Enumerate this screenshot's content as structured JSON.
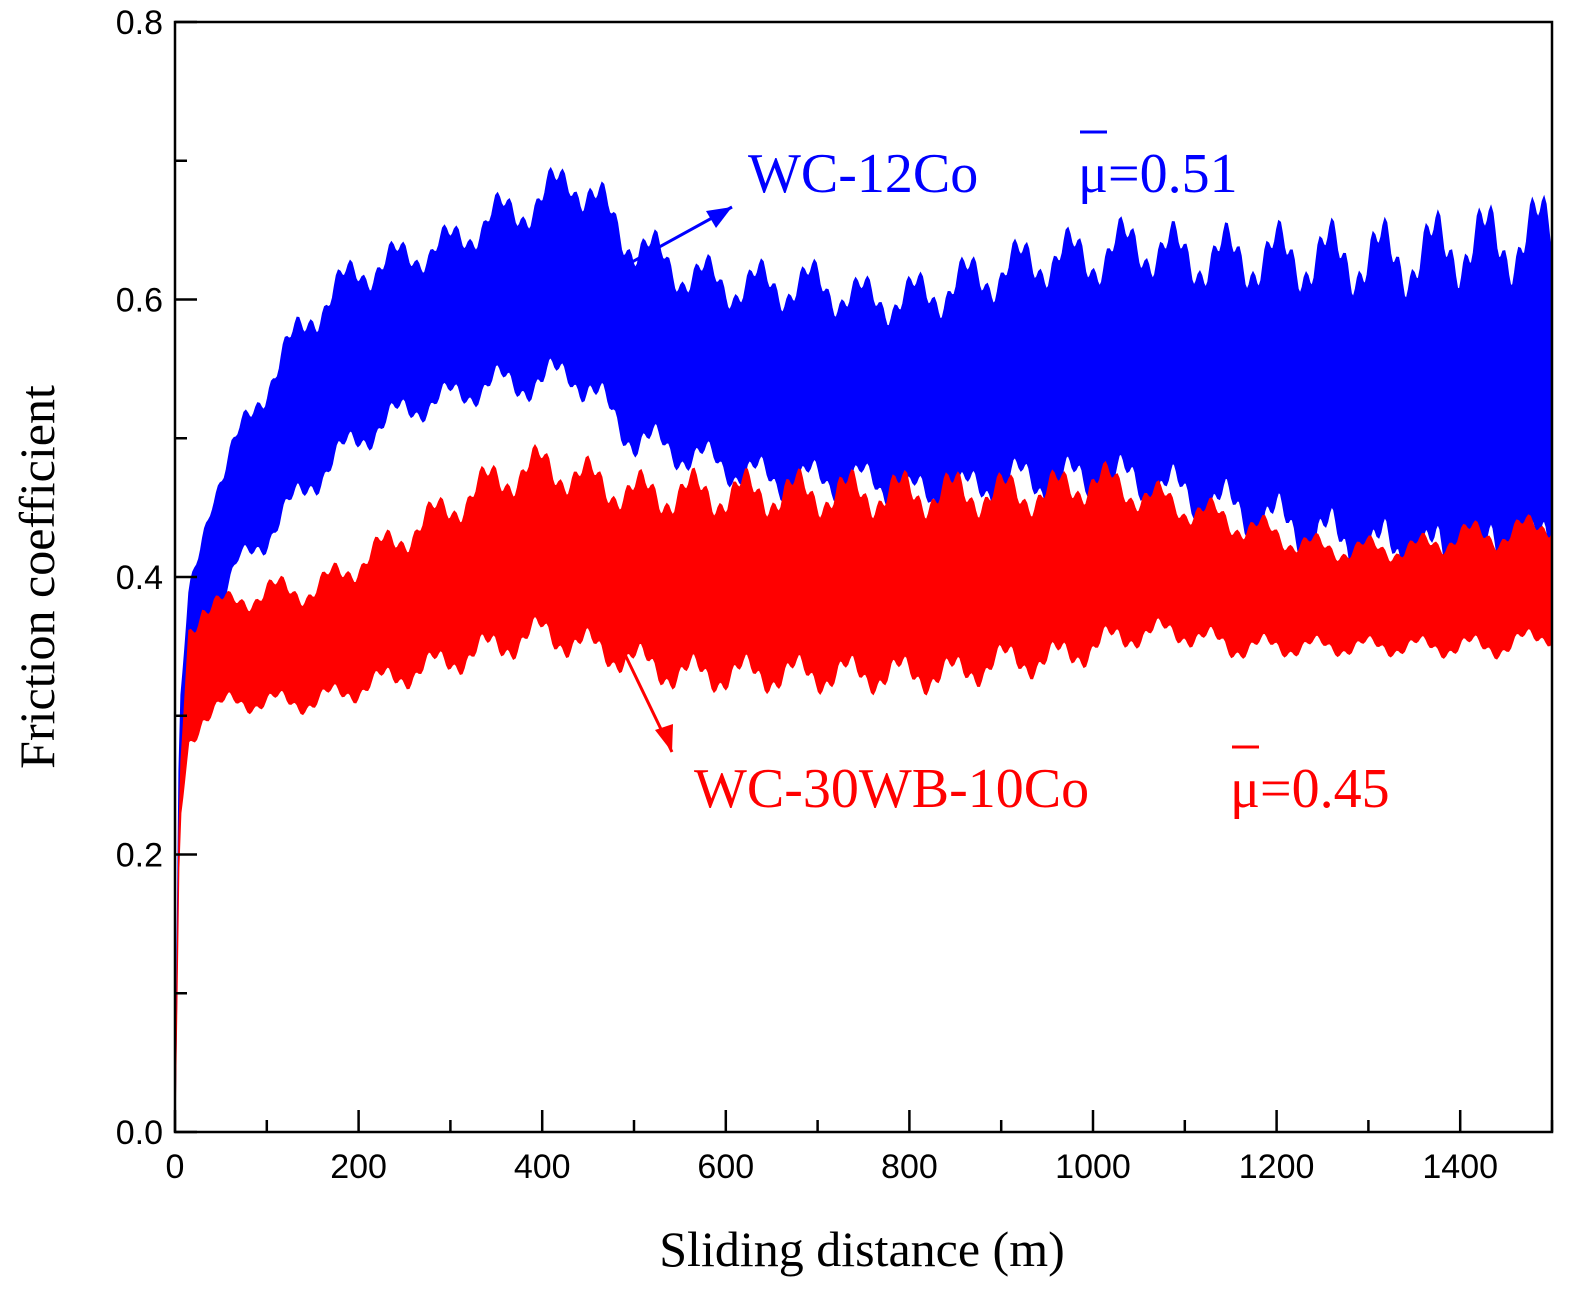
{
  "chart_data": {
    "type": "area",
    "xlabel": "Sliding distance (m)",
    "ylabel": "Friction coefficient",
    "xlim": [
      0,
      1500
    ],
    "ylim": [
      0,
      0.8
    ],
    "x_ticks": [
      0,
      200,
      400,
      600,
      800,
      1000,
      1200,
      1400
    ],
    "x_tick_labels": [
      "0",
      "200",
      "400",
      "600",
      "800",
      "1000",
      "1200",
      "1400"
    ],
    "x_minor_ticks": [
      100,
      300,
      500,
      700,
      900,
      1100,
      1300,
      1500
    ],
    "y_ticks": [
      0.0,
      0.2,
      0.4,
      0.6,
      0.8
    ],
    "y_tick_labels": [
      "0.0",
      "0.2",
      "0.4",
      "0.6",
      "0.8"
    ],
    "y_minor_ticks": [
      0.1,
      0.3,
      0.5,
      0.7
    ],
    "grid": false,
    "series": [
      {
        "color": "#0000ff",
        "x": [
          0,
          5,
          15,
          40,
          70,
          100,
          150,
          200,
          250,
          300,
          350,
          400,
          430,
          500,
          550,
          600,
          650,
          700,
          750,
          800,
          850,
          900,
          950,
          1000,
          1050,
          1100,
          1150,
          1200,
          1250,
          1300,
          1350,
          1400,
          1450,
          1500
        ],
        "upper": [
          0.0,
          0.3,
          0.38,
          0.46,
          0.5,
          0.54,
          0.59,
          0.62,
          0.63,
          0.64,
          0.66,
          0.67,
          0.69,
          0.64,
          0.62,
          0.61,
          0.61,
          0.61,
          0.6,
          0.6,
          0.61,
          0.62,
          0.63,
          0.63,
          0.64,
          0.63,
          0.63,
          0.63,
          0.63,
          0.63,
          0.63,
          0.64,
          0.64,
          0.65
        ],
        "lower": [
          0.0,
          0.26,
          0.3,
          0.37,
          0.41,
          0.43,
          0.47,
          0.5,
          0.52,
          0.53,
          0.54,
          0.54,
          0.55,
          0.5,
          0.49,
          0.48,
          0.47,
          0.47,
          0.47,
          0.46,
          0.46,
          0.47,
          0.47,
          0.47,
          0.47,
          0.46,
          0.45,
          0.44,
          0.43,
          0.42,
          0.42,
          0.41,
          0.42,
          0.42
        ]
      },
      {
        "color": "#ff0000",
        "x": [
          0,
          5,
          15,
          30,
          60,
          100,
          150,
          200,
          250,
          300,
          350,
          400,
          450,
          500,
          550,
          600,
          650,
          700,
          750,
          800,
          850,
          900,
          950,
          1000,
          1050,
          1100,
          1150,
          1200,
          1250,
          1300,
          1350,
          1400,
          1450,
          1500
        ],
        "upper": [
          0.0,
          0.25,
          0.36,
          0.38,
          0.38,
          0.39,
          0.39,
          0.41,
          0.43,
          0.45,
          0.47,
          0.48,
          0.47,
          0.46,
          0.46,
          0.46,
          0.46,
          0.46,
          0.46,
          0.46,
          0.46,
          0.46,
          0.46,
          0.47,
          0.46,
          0.45,
          0.44,
          0.43,
          0.42,
          0.42,
          0.42,
          0.43,
          0.43,
          0.44
        ],
        "lower": [
          0.0,
          0.22,
          0.28,
          0.3,
          0.31,
          0.31,
          0.31,
          0.32,
          0.33,
          0.34,
          0.35,
          0.36,
          0.35,
          0.34,
          0.33,
          0.33,
          0.33,
          0.33,
          0.33,
          0.33,
          0.33,
          0.34,
          0.34,
          0.35,
          0.36,
          0.36,
          0.35,
          0.35,
          0.35,
          0.35,
          0.35,
          0.35,
          0.35,
          0.36
        ]
      }
    ],
    "annotations": [
      {
        "material": "WC-12Co",
        "mu_symbol": "μ",
        "mu_value": "=0.51",
        "color": "#0000ff"
      },
      {
        "material": "WC-30WB-10Co",
        "mu_symbol": "μ",
        "mu_value": "=0.45",
        "color": "#ff0000"
      }
    ]
  }
}
